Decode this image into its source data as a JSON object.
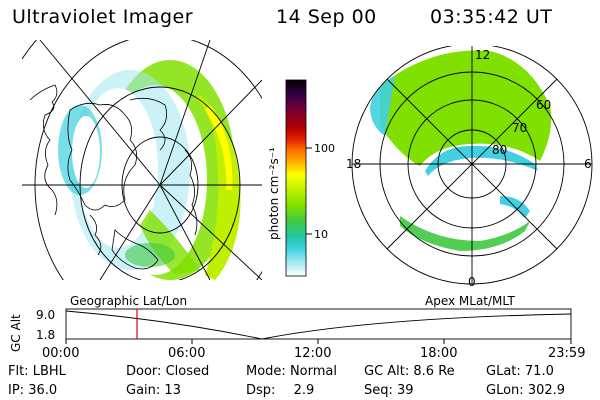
{
  "header": {
    "title": "Ultraviolet Imager",
    "date": "14 Sep 00",
    "time": "03:35:42  UT"
  },
  "colorbar": {
    "unit_label": "photon cm⁻²s⁻¹",
    "tick_labels": [
      "100",
      "10"
    ],
    "colors": [
      "#000000",
      "#2a003a",
      "#5a0040",
      "#8a0000",
      "#c00000",
      "#e83000",
      "#ff7000",
      "#ffb000",
      "#ffff00",
      "#c0f000",
      "#80e000",
      "#40c840",
      "#20c8a0",
      "#40d0e0",
      "#a0e8f0",
      "#e0f4f8",
      "#ffffff"
    ]
  },
  "geo_panel": {
    "label": "Geographic Lat/Lon"
  },
  "apex_panel": {
    "label": "Apex  MLat/MLT",
    "mlt_labels": [
      "12",
      "18",
      "6",
      "0"
    ],
    "lat_labels": [
      "60",
      "70",
      "80"
    ]
  },
  "altitude_plot": {
    "axis_label": "GC Alt",
    "y_ticks": [
      "9.0",
      "1.8"
    ],
    "x_ticks": [
      "00:00",
      "06:00",
      "12:00",
      "18:00",
      "23:59"
    ],
    "marker_color": "#e00000"
  },
  "footer": {
    "row1": [
      {
        "key": "Flt:",
        "value": "LBHL"
      },
      {
        "key": "Door:",
        "value": "Closed"
      },
      {
        "key": "Mode:",
        "value": "Normal"
      },
      {
        "key": "GC Alt:",
        "value": "8.6 Re"
      },
      {
        "key": "GLat:",
        "value": "71.0"
      }
    ],
    "row2": [
      {
        "key": "IP:",
        "value": "36.0"
      },
      {
        "key": "Gain:",
        "value": "13"
      },
      {
        "key": "Dsp:",
        "value": "2.9"
      },
      {
        "key": "Seq:",
        "value": "39"
      },
      {
        "key": "GLon:",
        "value": "302.9"
      }
    ]
  }
}
